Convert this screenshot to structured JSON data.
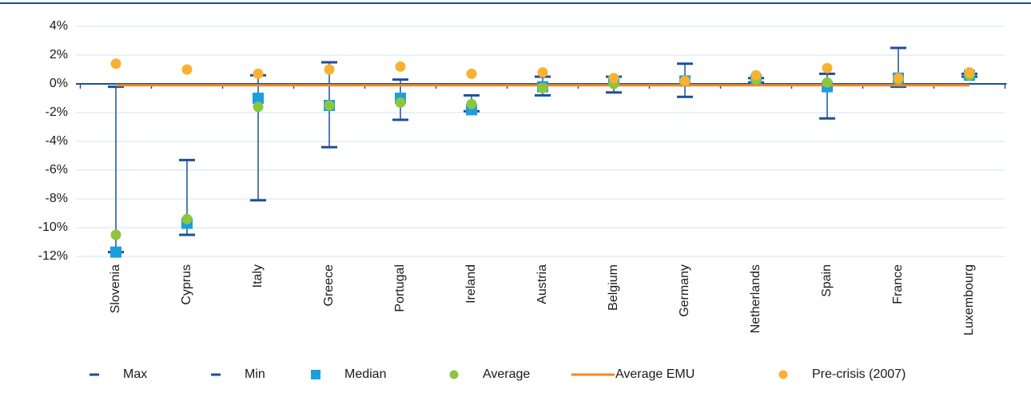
{
  "chart_data": {
    "type": "range",
    "categories": [
      "Slovenia",
      "Cyprus",
      "Italy",
      "Greece",
      "Portugal",
      "Ireland",
      "Austria",
      "Belgium",
      "Germany",
      "Netherlands",
      "Spain",
      "France",
      "Luxembourg"
    ],
    "series": [
      {
        "name": "Max",
        "color": "#1c4f9a",
        "marker": "dash",
        "values": [
          -0.2,
          -5.3,
          0.6,
          1.5,
          0.3,
          -0.8,
          0.5,
          0.5,
          1.4,
          0.4,
          0.7,
          2.5,
          0.7
        ]
      },
      {
        "name": "Min",
        "color": "#1c4f9a",
        "marker": "dash",
        "values": [
          -11.7,
          -10.5,
          -8.1,
          -4.4,
          -2.5,
          -1.9,
          -0.8,
          -0.6,
          -0.9,
          0.1,
          -2.4,
          -0.2,
          0.5
        ]
      },
      {
        "name": "Median",
        "color": "#1b9fe0",
        "marker": "square",
        "values": [
          -11.7,
          -9.7,
          -1.0,
          -1.5,
          -1.0,
          -1.8,
          -0.2,
          0.2,
          0.2,
          0.3,
          -0.2,
          0.4,
          0.6
        ]
      },
      {
        "name": "Average",
        "color": "#8cc63e",
        "marker": "circle",
        "values": [
          -10.5,
          -9.4,
          -1.6,
          -1.5,
          -1.3,
          -1.4,
          -0.3,
          0.0,
          0.2,
          0.3,
          0.1,
          0.3,
          0.6
        ]
      },
      {
        "name": "Average EMU",
        "color": "#ef8a22",
        "marker": "line",
        "values": [
          -0.1,
          -0.1,
          -0.1,
          -0.1,
          -0.1,
          -0.1,
          -0.1,
          -0.1,
          -0.1,
          -0.1,
          -0.1,
          -0.1,
          -0.1
        ]
      },
      {
        "name": "Pre-crisis (2007)",
        "color": "#f9b131",
        "marker": "circle",
        "values": [
          1.4,
          1.0,
          0.7,
          1.0,
          1.2,
          0.7,
          0.8,
          0.4,
          0.2,
          0.6,
          1.1,
          0.4,
          0.8
        ]
      }
    ],
    "ylim": [
      -12,
      4
    ],
    "yticks": [
      {
        "value": -12,
        "label": "-12%"
      },
      {
        "value": -10,
        "label": "-10%"
      },
      {
        "value": -8,
        "label": "-8%"
      },
      {
        "value": -6,
        "label": "-6%"
      },
      {
        "value": -4,
        "label": "-4%"
      },
      {
        "value": -2,
        "label": "-2%"
      },
      {
        "value": 0,
        "label": "0%"
      },
      {
        "value": 2,
        "label": "2%"
      },
      {
        "value": 4,
        "label": "4%"
      }
    ],
    "grid": true,
    "legend": "bottom"
  }
}
